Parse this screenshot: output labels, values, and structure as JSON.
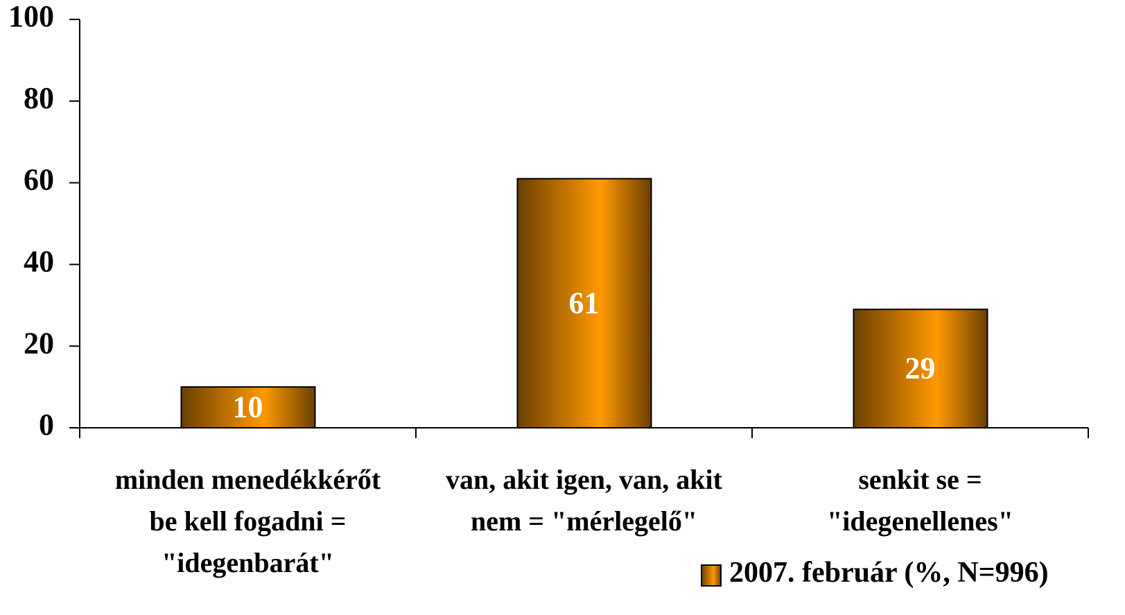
{
  "chart_data": {
    "type": "bar",
    "categories": [
      "minden menedékkérőt\nbe kell fogadni =\n\"idegenbarát\"",
      "van, akit igen, van, akit\nnem = \"mérlegelő\"",
      "senkit se =\n\"idegenellenes\""
    ],
    "series": [
      {
        "name": "2007. február (%, N=996)",
        "color": "#ff9900",
        "values": [
          10,
          61,
          29
        ]
      }
    ],
    "ylim": [
      0,
      100
    ],
    "yticks": [
      0,
      20,
      40,
      60,
      80,
      100
    ],
    "grid": false,
    "legend": "bottom-right",
    "data_labels": true
  }
}
